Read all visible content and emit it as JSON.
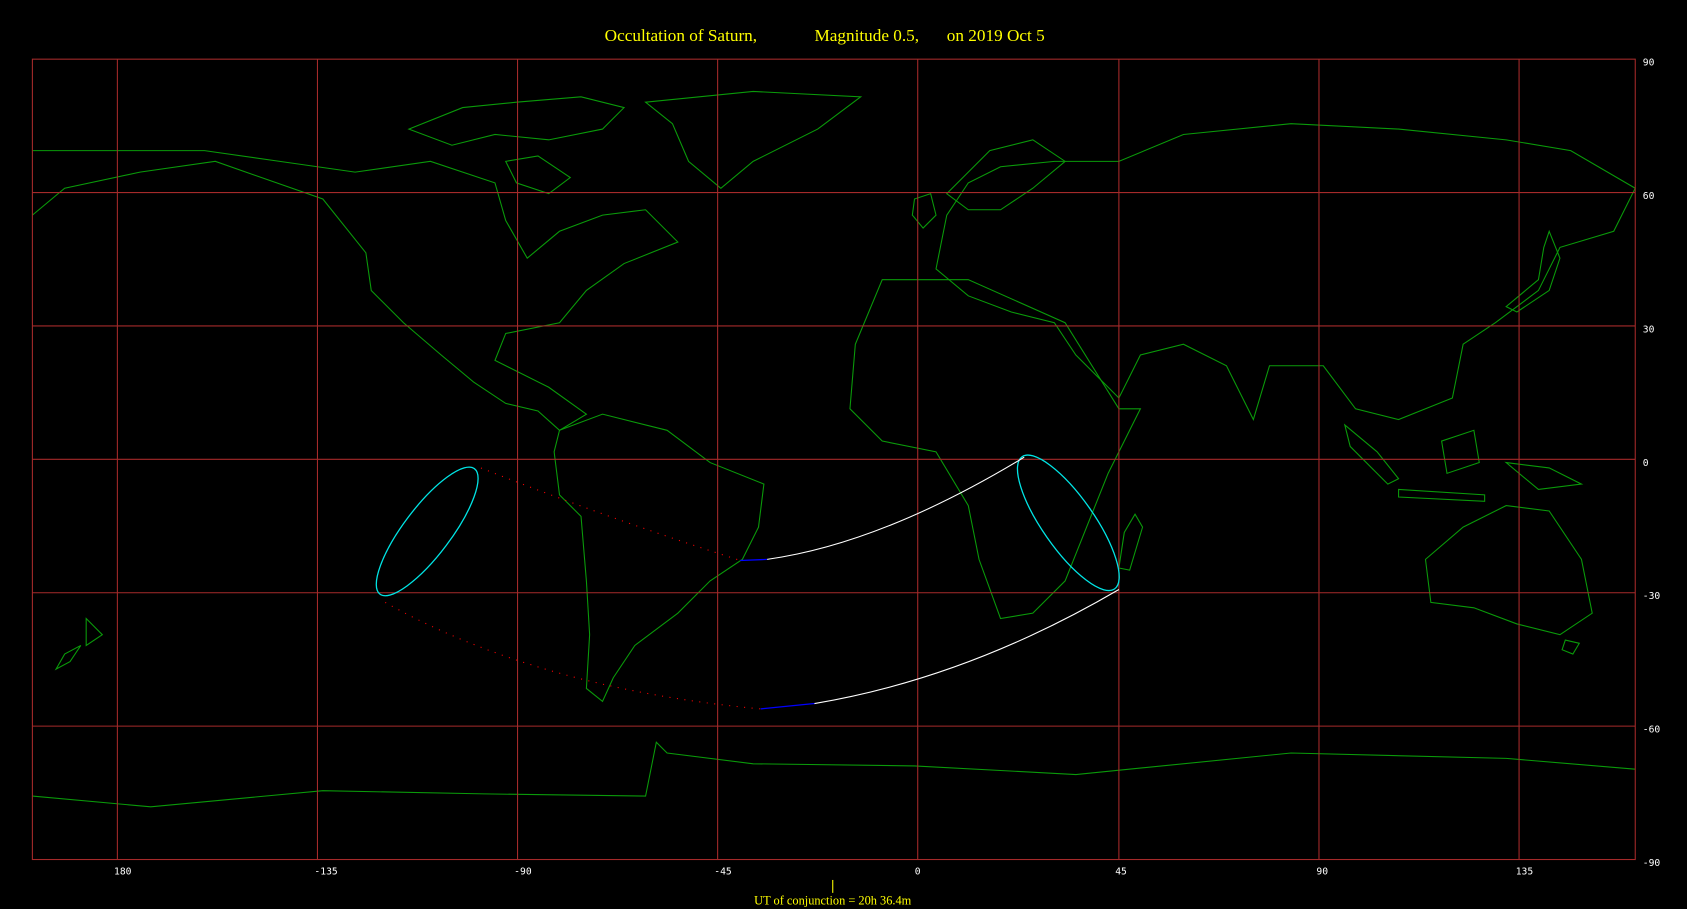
{
  "title": {
    "part1": "Occultation  of  Saturn,",
    "part2": "Magnitude 0.5,",
    "part3": "on  2019 Oct  5"
  },
  "map": {
    "projection": "equirectangular",
    "longitude_ticks": [
      "180",
      "-135",
      "-90",
      "-45",
      "0",
      "45",
      "90",
      "135"
    ],
    "latitude_ticks": [
      "90",
      "60",
      "30",
      "0",
      "-30",
      "-60",
      "-90"
    ],
    "colors": {
      "grid": "#a52a2a",
      "coastline": "#0a9a0a",
      "visibility_limits": "#00e5e5",
      "track_limits": "#ffffff",
      "daylight_track": "#0000ff",
      "twilight_track": "#ff0000",
      "text": "#ffff00"
    }
  },
  "footer": {
    "ut_label": "UT of conjunction = 20h 36.4m"
  }
}
